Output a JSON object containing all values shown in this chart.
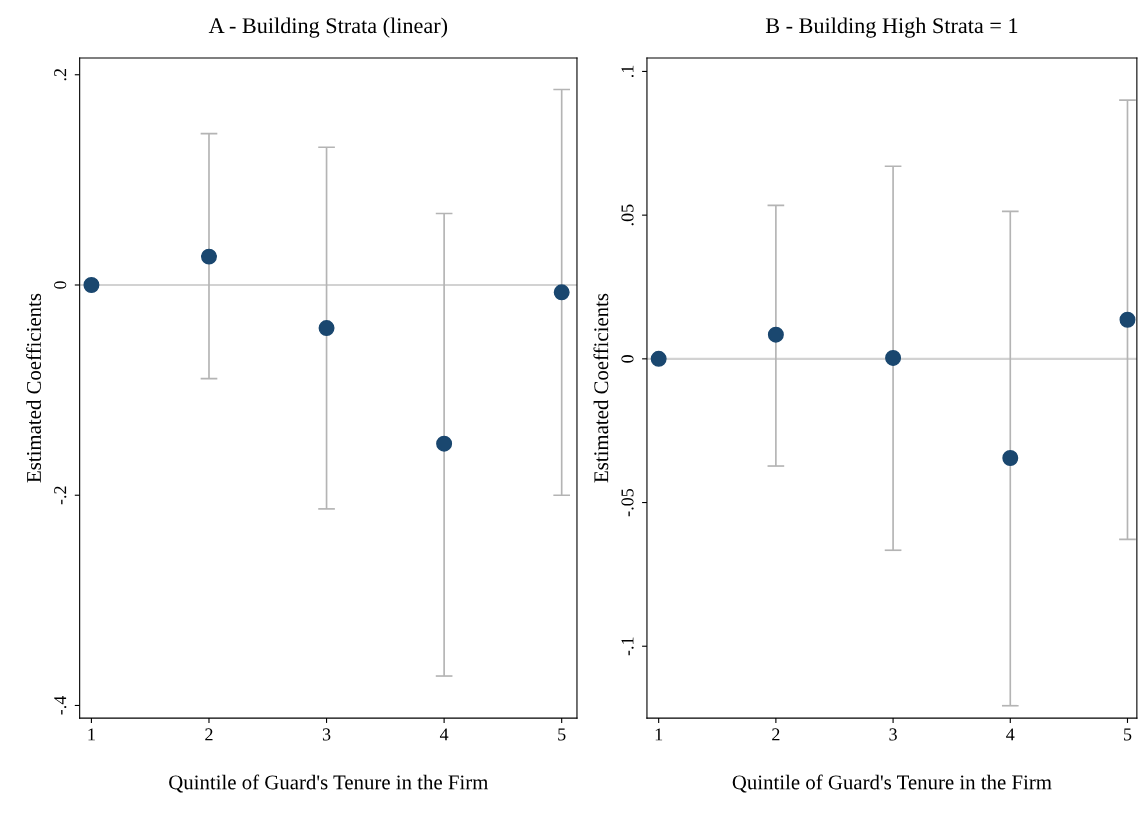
{
  "chart_data": [
    {
      "type": "scatter",
      "title": "A - Building Strata (linear)",
      "xlabel": "Quintile of Guard's Tenure in the Firm",
      "ylabel": "Estimated Coefficients",
      "x": [
        1,
        2,
        3,
        4,
        5
      ],
      "values": [
        0,
        0.027,
        -0.041,
        -0.151,
        -0.007
      ],
      "color": "#1a476f",
      "marker": "circle",
      "errors": [
        null,
        [
          -0.089,
          0.144
        ],
        [
          -0.213,
          0.131
        ],
        [
          -0.372,
          0.068
        ],
        [
          -0.2,
          0.186
        ]
      ],
      "xlim": [
        0.9,
        5.13
      ],
      "xticks": [
        1,
        2,
        3,
        4,
        5
      ],
      "ylim": [
        -0.412,
        0.216
      ],
      "yticks": [
        {
          "value": 0.2,
          "label": ".2"
        },
        0,
        {
          "value": -0.2,
          "label": "-.2"
        },
        {
          "value": -0.4,
          "label": "-.4"
        }
      ],
      "ref_lines": [
        {
          "axis": "y",
          "value": 0,
          "color": "#d2d2d2"
        }
      ],
      "grid": false,
      "legend": false
    },
    {
      "type": "scatter",
      "title": "B - Building High Strata = 1",
      "xlabel": "Quintile of Guard's Tenure in the Firm",
      "ylabel": "Estimated Coefficients",
      "x": [
        1,
        2,
        3,
        4,
        5
      ],
      "values": [
        0,
        0.0084,
        0.0003,
        -0.0345,
        0.0136
      ],
      "color": "#1a476f",
      "marker": "circle",
      "errors": [
        null,
        [
          -0.0373,
          0.0534
        ],
        [
          -0.0666,
          0.067
        ],
        [
          -0.1207,
          0.0513
        ],
        [
          -0.0628,
          0.09
        ]
      ],
      "xlim": [
        0.9,
        5.08
      ],
      "xticks": [
        1,
        2,
        3,
        4,
        5
      ],
      "ylim": [
        -0.125,
        0.1047
      ],
      "yticks": [
        {
          "value": 0.1,
          "label": ".1"
        },
        {
          "value": 0.05,
          "label": ".05"
        },
        0,
        {
          "value": -0.05,
          "label": "-.05"
        },
        {
          "value": -0.1,
          "label": "-.1"
        }
      ],
      "ref_lines": [
        {
          "axis": "y",
          "value": 0,
          "color": "#d2d2d2"
        }
      ],
      "grid": false,
      "legend": false
    }
  ]
}
